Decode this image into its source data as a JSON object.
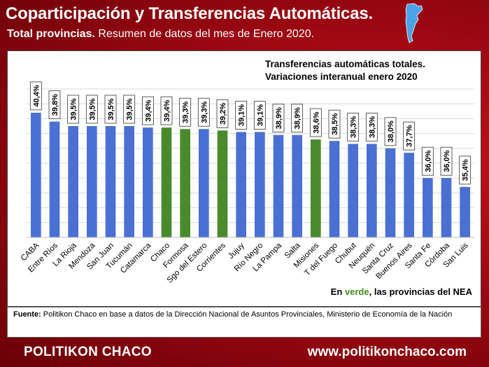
{
  "header": {
    "title": "Coparticipación y Transferencias Automáticas.",
    "subtitle_bold": "Total provincias.",
    "subtitle_rest": " Resumen de datos del mes de Enero 2020."
  },
  "chart_heading": {
    "line1": "Transferencias automáticas totales.",
    "line2": "Variaciones interanual enero 2020"
  },
  "note": {
    "prefix": "En ",
    "highlight": "verde",
    "suffix": ", las provincias del NEA"
  },
  "source": {
    "label": "Fuente:",
    "text": " Politikon Chaco en base a datos de la Dirección Nacional de Asuntos Provinciales, Ministerio de Economía de la Nación"
  },
  "footer": {
    "brand": "POLITIKON CHACO",
    "url": "www.politikonchaco.com"
  },
  "colors": {
    "blue_bar": "#4a70d4",
    "green_bar": "#4a8a2c",
    "background_red": "#b00a14"
  },
  "chart_data": {
    "type": "bar",
    "title": "Transferencias automáticas totales. Variaciones interanual enero 2020",
    "categories": [
      "CABA",
      "Entre Ríos",
      "La Rioja",
      "Mendoza",
      "San Juan",
      "Tucumán",
      "Catamarca",
      "Chaco",
      "Formosa",
      "Sgo del Estero",
      "Corrientes",
      "Jujuy",
      "Río Negro",
      "La Pampa",
      "Salta",
      "Misiones",
      "T del Fuego",
      "Chubut",
      "Neuquén",
      "Santa Cruz",
      "Buenos Aires",
      "Santa Fe",
      "Córdoba",
      "San Luis"
    ],
    "values": [
      40.4,
      39.8,
      39.5,
      39.5,
      39.5,
      39.5,
      39.4,
      39.4,
      39.3,
      39.3,
      39.2,
      39.1,
      39.1,
      38.9,
      38.9,
      38.6,
      38.5,
      38.3,
      38.3,
      38.0,
      37.7,
      36.0,
      36.0,
      35.4
    ],
    "labels": [
      "40,4%",
      "39,8%",
      "39,5%",
      "39,5%",
      "39,5%",
      "39,5%",
      "39,4%",
      "39,4%",
      "39,3%",
      "39,3%",
      "39,2%",
      "39,1%",
      "39,1%",
      "38,9%",
      "38,9%",
      "38,6%",
      "38,5%",
      "38,3%",
      "38,3%",
      "38,0%",
      "37,7%",
      "36,0%",
      "36,0%",
      "35,4%"
    ],
    "highlight_nea": [
      "Chaco",
      "Formosa",
      "Corrientes",
      "Misiones"
    ],
    "ylim": [
      32,
      42
    ],
    "grid": true,
    "legend": "none"
  }
}
